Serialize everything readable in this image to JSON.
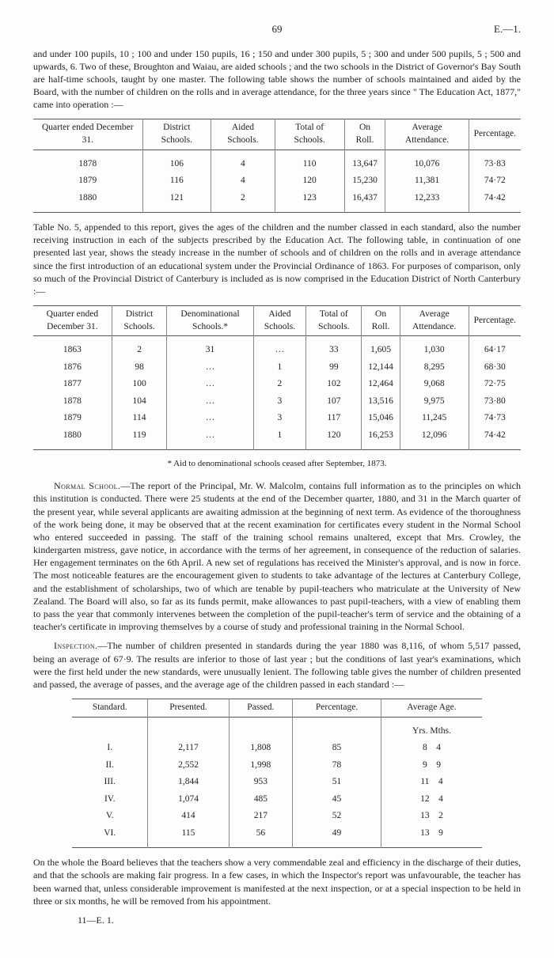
{
  "header": {
    "page": "69",
    "code": "E.—1."
  },
  "para1": "and under 100 pupils, 10 ; 100 and under 150 pupils, 16 ; 150 and under 300 pupils, 5 ; 300 and under 500 pupils, 5 ; 500 and upwards, 6. Two of these, Broughton and Waiau, are aided schools ; and the two schools in the District of Governor's Bay South are half-time schools, taught by one master. The following table shows the number of schools maintained and aided by the Board, with the number of children on the rolls and in average attendance, for the three years since \" The Education Act, 1877,\" came into operation :—",
  "table1": {
    "headers": [
      "Quarter ended December 31.",
      "District Schools.",
      "Aided Schools.",
      "Total of Schools.",
      "On Roll.",
      "Average Attendance.",
      "Percentage."
    ],
    "rows": [
      [
        "1878",
        "106",
        "4",
        "110",
        "13,647",
        "10,076",
        "73·83"
      ],
      [
        "1879",
        "116",
        "4",
        "120",
        "15,230",
        "11,381",
        "74·72"
      ],
      [
        "1880",
        "121",
        "2",
        "123",
        "16,437",
        "12,233",
        "74·42"
      ]
    ]
  },
  "para2": "Table No. 5, appended to this report, gives the ages of the children and the number classed in each standard, also the number receiving instruction in each of the subjects prescribed by the Education Act. The following table, in continuation of one presented last year, shows the steady increase in the number of schools and of children on the rolls and in average attendance since the first introduction of an educational system under the Provincial Ordinance of 1863. For purposes of comparison, only so much of the Provincial District of Canterbury is included as is now comprised in the Education District of North Canterbury :—",
  "table2": {
    "headers": [
      "Quarter ended December 31.",
      "District Schools.",
      "Denominational Schools.*",
      "Aided Schools.",
      "Total of Schools.",
      "On Roll.",
      "Average Attendance.",
      "Percentage."
    ],
    "rows": [
      [
        "1863",
        "2",
        "31",
        "…",
        "33",
        "1,605",
        "1,030",
        "64·17"
      ],
      [
        "1876",
        "98",
        "…",
        "1",
        "99",
        "12,144",
        "8,295",
        "68·30"
      ],
      [
        "1877",
        "100",
        "…",
        "2",
        "102",
        "12,464",
        "9,068",
        "72·75"
      ],
      [
        "1878",
        "104",
        "…",
        "3",
        "107",
        "13,516",
        "9,975",
        "73·80"
      ],
      [
        "1879",
        "114",
        "…",
        "3",
        "117",
        "15,046",
        "11,245",
        "74·73"
      ],
      [
        "1880",
        "119",
        "…",
        "1",
        "120",
        "16,253",
        "12,096",
        "74·42"
      ]
    ]
  },
  "footnote": "* Aid to denominational schools ceased after September, 1873.",
  "para3a": "Normal School.",
  "para3": "—The report of the Principal, Mr. W. Malcolm, contains full information as to the principles on which this institution is conducted. There were 25 students at the end of the December quarter, 1880, and 31 in the March quarter of the present year, while several applicants are awaiting admission at the beginning of next term. As evidence of the thoroughness of the work being done, it may be observed that at the recent examination for certificates every student in the Normal School who entered succeeded in passing. The staff of the training school remains unaltered, except that Mrs. Crowley, the kindergarten mistress, gave notice, in accordance with the terms of her agreement, in consequence of the reduction of salaries. Her engagement terminates on the 6th April. A new set of regulations has received the Minister's approval, and is now in force. The most noticeable features are the encouragement given to students to take advantage of the lectures at Canterbury College, and the establishment of scholarships, two of which are tenable by pupil-teachers who matriculate at the University of New Zealand. The Board will also, so far as its funds permit, make allowances to past pupil-teachers, with a view of enabling them to pass the year that commonly intervenes between the completion of the pupil-teacher's term of service and the obtaining of a teacher's certificate in improving themselves by a course of study and professional training in the Normal School.",
  "para4a": "Inspection.",
  "para4": "—The number of children presented in standards during the year 1880 was 8,116, of whom 5,517 passed, being an average of 67·9. The results are inferior to those of last year ; but the conditions of last year's examinations, which were the first held under the new standards, were unusually lenient. The following table gives the number of children presented and passed, the average of passes, and the average age of the children passed in each standard :—",
  "table3": {
    "headers": [
      "Standard.",
      "Presented.",
      "Passed.",
      "Percentage.",
      "Average Age."
    ],
    "subhead": "Yrs. Mths.",
    "rows": [
      [
        "I.",
        "2,117",
        "1,808",
        "85",
        "8    4"
      ],
      [
        "II.",
        "2,552",
        "1,998",
        "78",
        "9    9"
      ],
      [
        "III.",
        "1,844",
        "953",
        "51",
        "11    4"
      ],
      [
        "IV.",
        "1,074",
        "485",
        "45",
        "12    4"
      ],
      [
        "V.",
        "414",
        "217",
        "52",
        "13    2"
      ],
      [
        "VI.",
        "115",
        "56",
        "49",
        "13    9"
      ]
    ]
  },
  "para5": "On the whole the Board believes that the teachers show a very commendable zeal and efficiency in the discharge of their duties, and that the schools are making fair progress. In a few cases, in which the Inspector's report was unfavourable, the teacher has been warned that, unless considerable improvement is manifested at the next inspection, or at a special inspection to be held in three or six months, he will be removed from his appointment.",
  "sig": "11—E. 1."
}
